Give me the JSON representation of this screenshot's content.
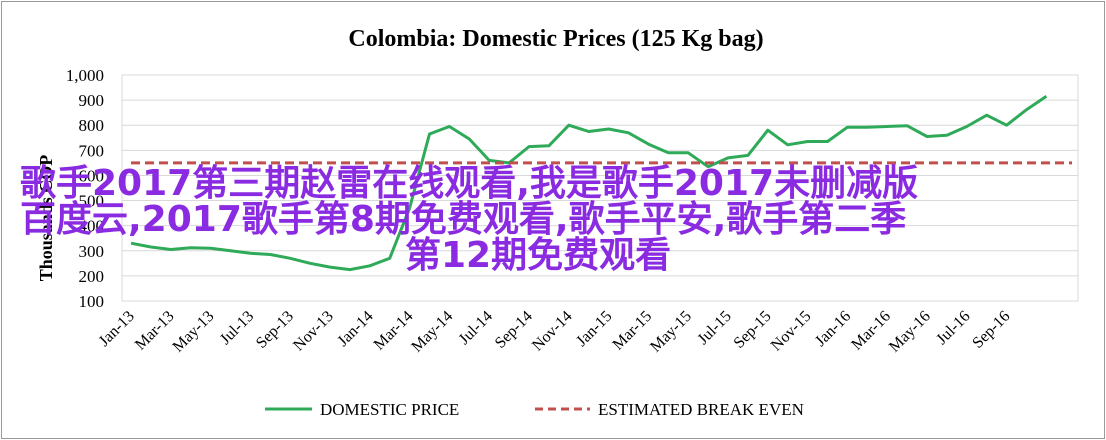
{
  "chart_data": {
    "type": "line",
    "title": "Colombia:  Domestic Prices (125 Kg bag)",
    "ylabel": "Thousands COP",
    "ylim": [
      100,
      1000
    ],
    "yticks": [
      "100",
      "200",
      "300",
      "400",
      "500",
      "600",
      "700",
      "800",
      "900",
      "1,000"
    ],
    "xticks": [
      "Jan-13",
      "Mar-13",
      "May-13",
      "Jul-13",
      "Sep-13",
      "Nov-13",
      "Jan-14",
      "Mar-14",
      "May-14",
      "Jul-14",
      "Sep-14",
      "Nov-14",
      "Jan-15",
      "Mar-15",
      "May-15",
      "Jul-15",
      "Sep-15",
      "Nov-15",
      "Jan-16",
      "Mar-16",
      "May-16",
      "Jul-16",
      "Sep-16"
    ],
    "grid": true,
    "legend_position": "bottom",
    "series": [
      {
        "name": "DOMESTIC PRICE",
        "color": "#2eaa58",
        "style": "solid",
        "values": [
          330,
          315,
          305,
          312,
          310,
          300,
          290,
          285,
          270,
          250,
          235,
          225,
          240,
          270,
          470,
          765,
          795,
          745,
          660,
          650,
          715,
          718,
          800,
          775,
          785,
          770,
          725,
          690,
          690,
          635,
          670,
          680,
          780,
          722,
          735,
          735,
          792,
          792,
          795,
          798,
          755,
          760,
          795,
          840,
          800,
          862,
          915
        ]
      },
      {
        "name": "ESTIMATED BREAK EVEN",
        "color": "#c0504d",
        "style": "dashed",
        "values": [
          650,
          650
        ]
      }
    ]
  },
  "overlay": {
    "line1": "歌手2017第三期赵雷在线观看,我是歌手2017未删减版",
    "line2": "百度云,2017歌手第8期免费观看,歌手平安,歌手第二季",
    "line3": "第12期免费观看"
  }
}
